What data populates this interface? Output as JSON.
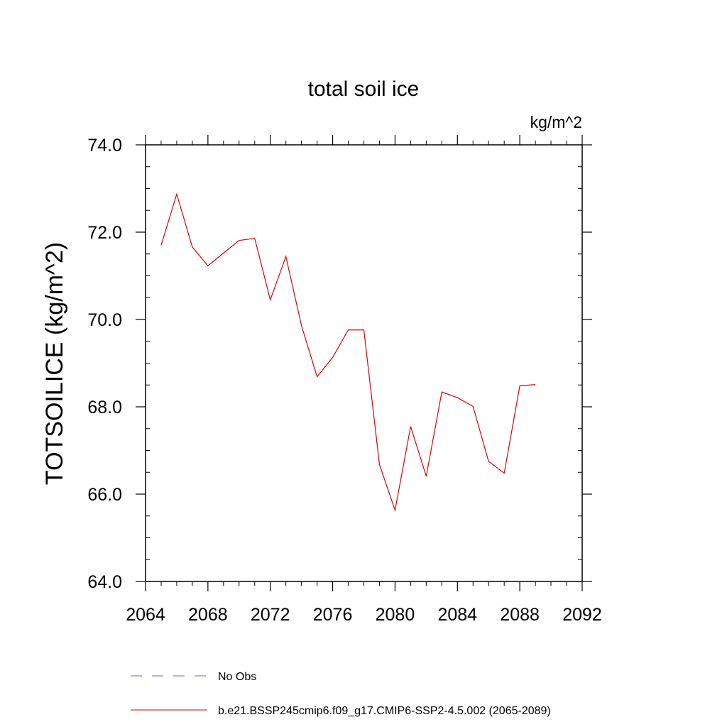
{
  "chart_data": {
    "type": "line",
    "title": "total soil ice",
    "units_label": "kg/m^2",
    "ylabel": "TOTSOILICE  (kg/m^2)",
    "xlabel": "",
    "xlim": [
      2064,
      2092
    ],
    "ylim": [
      64.0,
      74.0
    ],
    "xticks": [
      2064,
      2068,
      2072,
      2076,
      2080,
      2084,
      2088,
      2092
    ],
    "yticks": [
      64.0,
      66.0,
      68.0,
      70.0,
      72.0,
      74.0
    ],
    "xtick_labels": [
      "2064",
      "2068",
      "2072",
      "2076",
      "2080",
      "2084",
      "2088",
      "2092"
    ],
    "ytick_labels": [
      "64.0",
      "66.0",
      "68.0",
      "70.0",
      "72.0",
      "74.0"
    ],
    "grid": false,
    "legend_position": "bottom",
    "series": [
      {
        "name": "b.e21.BSSP245cmip6.f09_g17.CMIP6-SSP2-4.5.002 (2065-2089)",
        "color": "#e00000",
        "dash": "solid",
        "x": [
          2065,
          2066,
          2067,
          2068,
          2069,
          2070,
          2071,
          2072,
          2073,
          2074,
          2075,
          2076,
          2077,
          2078,
          2079,
          2080,
          2081,
          2082,
          2083,
          2084,
          2085,
          2086,
          2087,
          2088,
          2089
        ],
        "y": [
          71.7,
          72.87,
          71.66,
          71.23,
          71.52,
          71.81,
          71.86,
          70.45,
          71.44,
          69.86,
          68.69,
          69.13,
          69.76,
          69.76,
          66.68,
          65.63,
          67.55,
          66.41,
          68.34,
          68.21,
          68.01,
          66.75,
          66.48,
          68.48,
          68.51
        ]
      }
    ],
    "legend": [
      {
        "name": "No Obs",
        "color": "#6a6ac8",
        "dash": "dashed"
      },
      {
        "name": "b.e21.BSSP245cmip6.f09_g17.CMIP6-SSP2-4.5.002 (2065-2089)",
        "color": "#e00000",
        "dash": "solid"
      }
    ]
  }
}
